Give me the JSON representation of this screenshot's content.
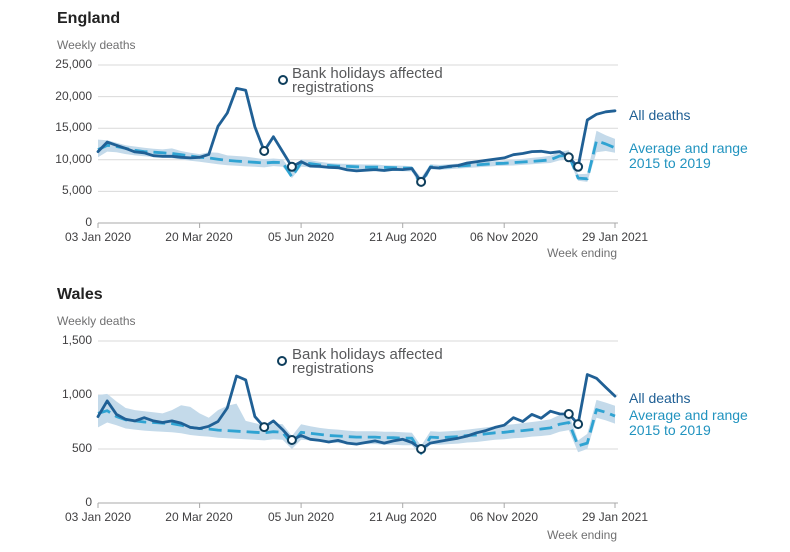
{
  "colors": {
    "all_deaths": "#206095",
    "average_line": "#2FA3D2",
    "average_label": "#2193BF",
    "range_band": "#C4DAEA",
    "marker_ring": "#0E3E5C",
    "grid": "#D9D9D9",
    "axis": "#A8A8A8",
    "title_text": "#222222",
    "muted_text": "#707071",
    "tick_text": "#414042",
    "annotation_text": "#58595B"
  },
  "charts": [
    {
      "title": "England",
      "subtitle": "Weekly deaths",
      "x_axis_note": "Week ending",
      "annotation": {
        "line1": "Bank holidays affected",
        "line2": "registrations"
      },
      "legend": {
        "all_deaths": "All deaths",
        "average_line1": "Average and range",
        "average_line2": "2015 to 2019"
      },
      "y_tick_labels": [
        "25,000",
        "20,000",
        "15,000",
        "10,000",
        "5,000",
        "0"
      ],
      "x_tick_labels": [
        "03 Jan 2020",
        "20 Mar 2020",
        "05 Jun 2020",
        "21 Aug 2020",
        "06 Nov 2020",
        "29 Jan 2021"
      ],
      "chart_data": {
        "type": "line",
        "title": "England weekly deaths",
        "xlabel": "Week ending",
        "ylabel": "Weekly deaths",
        "x_start": "03 Jan 2020",
        "x_end": "29 Jan 2021",
        "x_unit": "weeks",
        "n_points": 57,
        "ylim": [
          0,
          25000
        ],
        "y_tick_values": [
          25000,
          20000,
          15000,
          10000,
          5000,
          0
        ],
        "x_tick_weeks": [
          0,
          11,
          22,
          33,
          44,
          56
        ],
        "grid": true,
        "legend_position": "right",
        "bank_holiday_weeks": [
          18,
          21,
          35,
          51,
          52
        ],
        "series": [
          {
            "name": "All deaths",
            "values": [
              11300,
              12800,
              12300,
              11800,
              11250,
              11100,
              10650,
              10550,
              10550,
              10400,
              10300,
              10400,
              10850,
              15300,
              17400,
              21300,
              21000,
              15200,
              11400,
              13650,
              11300,
              8900,
              9700,
              9000,
              8950,
              8800,
              8750,
              8400,
              8250,
              8350,
              8450,
              8300,
              8500,
              8450,
              8600,
              6500,
              8800,
              8700,
              8950,
              9100,
              9500,
              9700,
              9900,
              10100,
              10300,
              10800,
              11000,
              11300,
              11350,
              11100,
              11300,
              10400,
              8900,
              16300,
              17200,
              17600,
              17750
            ]
          },
          {
            "name": "Average 2015 to 2019",
            "style": "dashed",
            "values": [
              11600,
              12300,
              12100,
              11800,
              11500,
              11300,
              11200,
              11100,
              11000,
              10800,
              10600,
              10400,
              10300,
              10100,
              9900,
              9800,
              9700,
              9600,
              9500,
              9600,
              9550,
              7300,
              9550,
              9400,
              9200,
              9100,
              9000,
              8950,
              8900,
              8850,
              8850,
              8800,
              8750,
              8700,
              8650,
              6000,
              8900,
              8800,
              8900,
              9000,
              9100,
              9200,
              9300,
              9400,
              9450,
              9550,
              9650,
              9750,
              9850,
              10000,
              10600,
              10700,
              7100,
              7000,
              13000,
              12500,
              11900
            ]
          }
        ],
        "range_band": {
          "name": "Range 2015 to 2019",
          "max": [
            13200,
            13100,
            12700,
            12300,
            12100,
            11900,
            11750,
            11650,
            11800,
            11400,
            11100,
            10900,
            11200,
            11100,
            10700,
            10600,
            10500,
            10300,
            10100,
            10200,
            10100,
            8200,
            10100,
            9900,
            9700,
            9500,
            9400,
            9350,
            9300,
            9250,
            9250,
            9150,
            9100,
            9050,
            9000,
            7200,
            9300,
            9200,
            9300,
            9400,
            9500,
            9600,
            9700,
            9800,
            9900,
            10000,
            10150,
            10300,
            10450,
            10650,
            11300,
            11500,
            7700,
            7800,
            14600,
            13900,
            13300
          ],
          "min": [
            10400,
            11300,
            11200,
            10900,
            10700,
            10550,
            10450,
            10350,
            10250,
            10050,
            9850,
            9700,
            9500,
            9300,
            9150,
            9050,
            8950,
            8900,
            8800,
            9000,
            8900,
            7100,
            8900,
            8800,
            8650,
            8600,
            8500,
            8450,
            8400,
            8350,
            8350,
            8300,
            8250,
            8200,
            8150,
            5600,
            8500,
            8400,
            8500,
            8600,
            8700,
            8800,
            8900,
            9000,
            9050,
            9100,
            9200,
            9300,
            9400,
            9500,
            9900,
            10100,
            6700,
            6500,
            11200,
            11400,
            11100
          ]
        }
      }
    },
    {
      "title": "Wales",
      "subtitle": "Weekly deaths",
      "x_axis_note": "Week ending",
      "annotation": {
        "line1": "Bank holidays affected",
        "line2": "registrations"
      },
      "legend": {
        "all_deaths": "All deaths",
        "average_line1": "Average and range",
        "average_line2": "2015 to 2019"
      },
      "y_tick_labels": [
        "1,500",
        "1,000",
        "500",
        "0"
      ],
      "x_tick_labels": [
        "03 Jan 2020",
        "20 Mar 2020",
        "05 Jun 2020",
        "21 Aug 2020",
        "06 Nov 2020",
        "29 Jan 2021"
      ],
      "chart_data": {
        "type": "line",
        "title": "Wales weekly deaths",
        "xlabel": "Week ending",
        "ylabel": "Weekly deaths",
        "x_start": "03 Jan 2020",
        "x_end": "29 Jan 2021",
        "x_unit": "weeks",
        "n_points": 57,
        "ylim": [
          0,
          1500
        ],
        "y_tick_values": [
          1500,
          1000,
          500,
          0
        ],
        "x_tick_weeks": [
          0,
          11,
          22,
          33,
          44,
          56
        ],
        "grid": true,
        "legend_position": "right",
        "bank_holiday_weeks": [
          18,
          21,
          35,
          51,
          52
        ],
        "series": [
          {
            "name": "All deaths",
            "values": [
              800,
              945,
              820,
              775,
              760,
              790,
              760,
              745,
              760,
              740,
              700,
              690,
              710,
              755,
              880,
              1176,
              1140,
              800,
              703,
              760,
              680,
              583,
              625,
              590,
              580,
              565,
              580,
              555,
              545,
              560,
              575,
              555,
              575,
              590,
              560,
              500,
              555,
              570,
              585,
              600,
              620,
              650,
              670,
              700,
              720,
              790,
              755,
              820,
              785,
              850,
              825,
              824,
              731,
              1190,
              1155,
              1070,
              990
            ]
          },
          {
            "name": "Average 2015 to 2019",
            "style": "dashed",
            "values": [
              830,
              855,
              800,
              770,
              760,
              750,
              745,
              740,
              735,
              720,
              700,
              690,
              685,
              675,
              670,
              665,
              660,
              655,
              650,
              660,
              655,
              545,
              655,
              645,
              635,
              625,
              620,
              615,
              610,
              610,
              610,
              605,
              605,
              600,
              600,
              460,
              610,
              605,
              610,
              615,
              625,
              630,
              640,
              650,
              655,
              665,
              670,
              680,
              685,
              695,
              730,
              745,
              530,
              555,
              865,
              840,
              805
            ]
          }
        ],
        "range_band": {
          "name": "Range 2015 to 2019",
          "max": [
            1000,
            1010,
            940,
            880,
            860,
            850,
            840,
            830,
            860,
            905,
            890,
            830,
            790,
            860,
            900,
            920,
            760,
            740,
            720,
            740,
            730,
            620,
            730,
            710,
            695,
            685,
            680,
            670,
            665,
            665,
            665,
            660,
            660,
            655,
            650,
            530,
            665,
            660,
            665,
            670,
            680,
            690,
            700,
            710,
            720,
            730,
            740,
            750,
            760,
            775,
            815,
            830,
            580,
            640,
            955,
            930,
            900
          ],
          "min": [
            700,
            745,
            720,
            690,
            680,
            670,
            665,
            660,
            655,
            645,
            630,
            620,
            615,
            605,
            600,
            595,
            590,
            585,
            580,
            590,
            585,
            500,
            585,
            580,
            570,
            560,
            555,
            550,
            545,
            545,
            545,
            540,
            540,
            535,
            535,
            440,
            545,
            540,
            545,
            550,
            560,
            565,
            575,
            585,
            590,
            600,
            605,
            615,
            620,
            630,
            660,
            675,
            470,
            500,
            790,
            765,
            735
          ]
        }
      }
    }
  ]
}
